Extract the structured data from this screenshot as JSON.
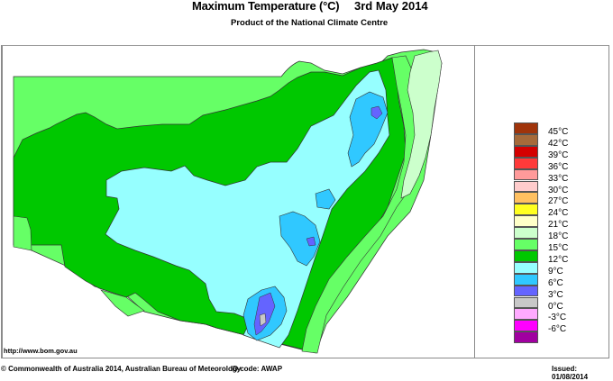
{
  "header": {
    "title": "Maximum Temperature (°C)",
    "date": "3rd May 2014",
    "subtitle": "Product of the National Climate Centre"
  },
  "map": {
    "region": "New South Wales",
    "variable": "Maximum Temperature",
    "dominant_ranges": [
      "12-15°C",
      "9-12°C",
      "15-18°C"
    ]
  },
  "legend": {
    "items": [
      {
        "label": "45°C",
        "color": "#a0340b"
      },
      {
        "label": "42°C",
        "color": "#a66a3a"
      },
      {
        "label": "39°C",
        "color": "#d40000"
      },
      {
        "label": "36°C",
        "color": "#ff3a3a"
      },
      {
        "label": "33°C",
        "color": "#ff9a9a"
      },
      {
        "label": "30°C",
        "color": "#ffcccc"
      },
      {
        "label": "27°C",
        "color": "#ffc060"
      },
      {
        "label": "24°C",
        "color": "#ffff20"
      },
      {
        "label": "21°C",
        "color": "#ffffc8"
      },
      {
        "label": "18°C",
        "color": "#ccffcc"
      },
      {
        "label": "15°C",
        "color": "#66ff66"
      },
      {
        "label": "12°C",
        "color": "#00c800"
      },
      {
        "label": "9°C",
        "color": "#96ffff"
      },
      {
        "label": "6°C",
        "color": "#30c8ff"
      },
      {
        "label": "3°C",
        "color": "#6464ff"
      },
      {
        "label": "0°C",
        "color": "#c8c8c8"
      },
      {
        "label": "-3°C",
        "color": "#ffaaff"
      },
      {
        "label": "-6°C",
        "color": "#ff00ff"
      },
      {
        "label": "",
        "color": "#a000a0"
      }
    ]
  },
  "footer": {
    "url": "http://www.bom.gov.au",
    "copyright": "© Commonwealth of Australia 2014, Australian Bureau of Meteorology",
    "id_code": "ID code: AWAP",
    "issued": "Issued: 01/08/2014"
  }
}
